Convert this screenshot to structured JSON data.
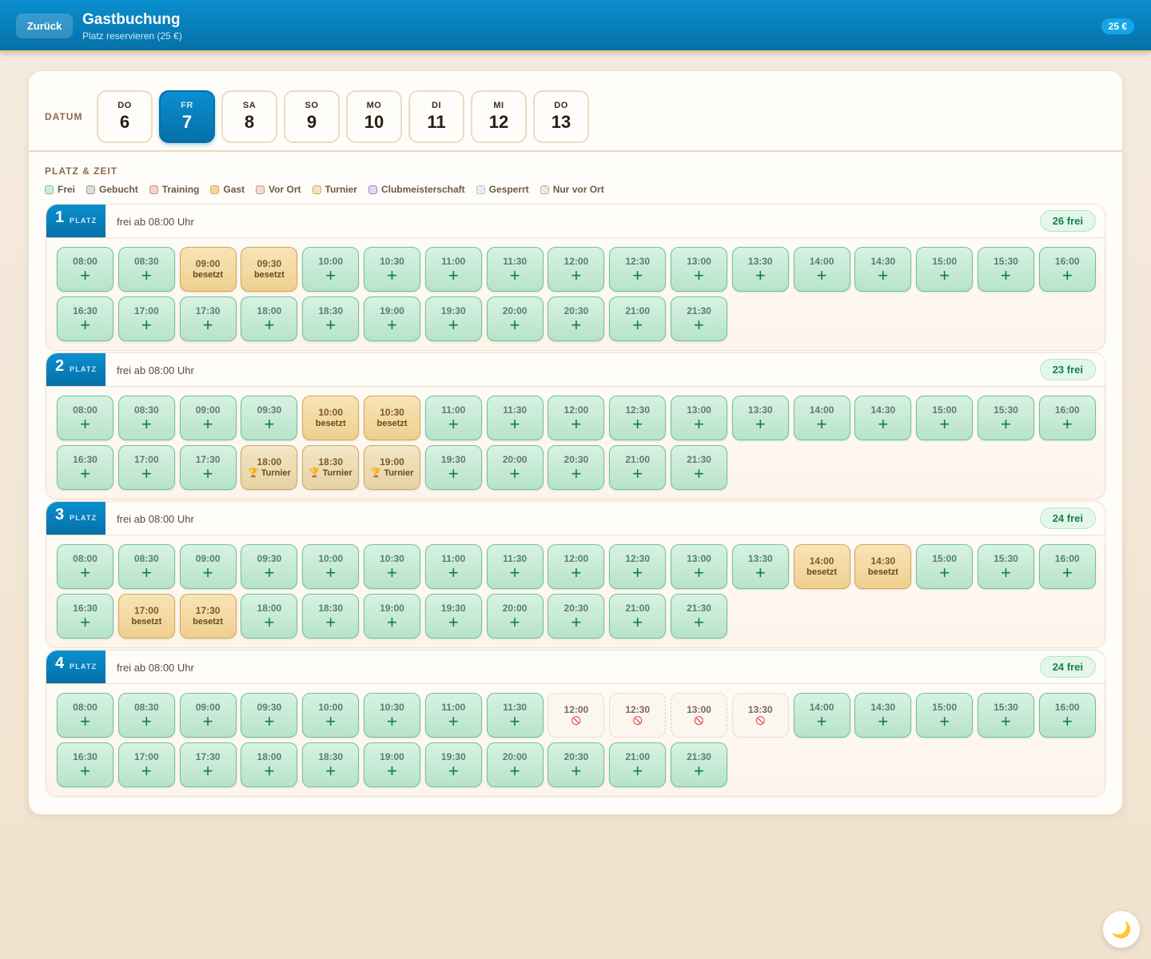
{
  "header": {
    "back_label": "Zurück",
    "title": "Gastbuchung",
    "subtitle": "Platz reservieren (25 €)",
    "price": "25 €"
  },
  "date": {
    "label": "DATUM",
    "days": [
      {
        "dow": "DO",
        "day": "6"
      },
      {
        "dow": "FR",
        "day": "7",
        "selected": true
      },
      {
        "dow": "SA",
        "day": "8"
      },
      {
        "dow": "SO",
        "day": "9"
      },
      {
        "dow": "MO",
        "day": "10"
      },
      {
        "dow": "DI",
        "day": "11"
      },
      {
        "dow": "MI",
        "day": "12"
      },
      {
        "dow": "DO",
        "day": "13"
      }
    ]
  },
  "section_title": "PLATZ & ZEIT",
  "legend": [
    "Frei",
    "Gebucht",
    "Training",
    "Gast",
    "Vor Ort",
    "Turnier",
    "Clubmeisterschaft",
    "Gesperrt",
    "Nur vor Ort"
  ],
  "courts": [
    {
      "num": "1",
      "label": "PLATZ",
      "info": "frei ab 08:00 Uhr",
      "free": "26 frei",
      "slots": [
        {
          "t": "08:00",
          "k": "free"
        },
        {
          "t": "08:30",
          "k": "free"
        },
        {
          "t": "09:00",
          "k": "busy",
          "s": "besetzt"
        },
        {
          "t": "09:30",
          "k": "busy",
          "s": "besetzt"
        },
        {
          "t": "10:00",
          "k": "free"
        },
        {
          "t": "10:30",
          "k": "free"
        },
        {
          "t": "11:00",
          "k": "free"
        },
        {
          "t": "11:30",
          "k": "free"
        },
        {
          "t": "12:00",
          "k": "free"
        },
        {
          "t": "12:30",
          "k": "free"
        },
        {
          "t": "13:00",
          "k": "free"
        },
        {
          "t": "13:30",
          "k": "free"
        },
        {
          "t": "14:00",
          "k": "free"
        },
        {
          "t": "14:30",
          "k": "free"
        },
        {
          "t": "15:00",
          "k": "free"
        },
        {
          "t": "15:30",
          "k": "free"
        },
        {
          "t": "16:00",
          "k": "free"
        },
        {
          "t": "16:30",
          "k": "free"
        },
        {
          "t": "17:00",
          "k": "free"
        },
        {
          "t": "17:30",
          "k": "free"
        },
        {
          "t": "18:00",
          "k": "free"
        },
        {
          "t": "18:30",
          "k": "free"
        },
        {
          "t": "19:00",
          "k": "free"
        },
        {
          "t": "19:30",
          "k": "free"
        },
        {
          "t": "20:00",
          "k": "free"
        },
        {
          "t": "20:30",
          "k": "free"
        },
        {
          "t": "21:00",
          "k": "free"
        },
        {
          "t": "21:30",
          "k": "free"
        }
      ]
    },
    {
      "num": "2",
      "label": "PLATZ",
      "info": "frei ab 08:00 Uhr",
      "free": "23 frei",
      "slots": [
        {
          "t": "08:00",
          "k": "free"
        },
        {
          "t": "08:30",
          "k": "free"
        },
        {
          "t": "09:00",
          "k": "free"
        },
        {
          "t": "09:30",
          "k": "free"
        },
        {
          "t": "10:00",
          "k": "busy",
          "s": "besetzt"
        },
        {
          "t": "10:30",
          "k": "busy",
          "s": "besetzt"
        },
        {
          "t": "11:00",
          "k": "free"
        },
        {
          "t": "11:30",
          "k": "free"
        },
        {
          "t": "12:00",
          "k": "free"
        },
        {
          "t": "12:30",
          "k": "free"
        },
        {
          "t": "13:00",
          "k": "free"
        },
        {
          "t": "13:30",
          "k": "free"
        },
        {
          "t": "14:00",
          "k": "free"
        },
        {
          "t": "14:30",
          "k": "free"
        },
        {
          "t": "15:00",
          "k": "free"
        },
        {
          "t": "15:30",
          "k": "free"
        },
        {
          "t": "16:00",
          "k": "free"
        },
        {
          "t": "16:30",
          "k": "free"
        },
        {
          "t": "17:00",
          "k": "free"
        },
        {
          "t": "17:30",
          "k": "free"
        },
        {
          "t": "18:00",
          "k": "turnier",
          "s": "🏆 Turnier"
        },
        {
          "t": "18:30",
          "k": "turnier",
          "s": "🏆 Turnier"
        },
        {
          "t": "19:00",
          "k": "turnier",
          "s": "🏆 Turnier"
        },
        {
          "t": "19:30",
          "k": "free"
        },
        {
          "t": "20:00",
          "k": "free"
        },
        {
          "t": "20:30",
          "k": "free"
        },
        {
          "t": "21:00",
          "k": "free"
        },
        {
          "t": "21:30",
          "k": "free"
        }
      ]
    },
    {
      "num": "3",
      "label": "PLATZ",
      "info": "frei ab 08:00 Uhr",
      "free": "24 frei",
      "slots": [
        {
          "t": "08:00",
          "k": "free"
        },
        {
          "t": "08:30",
          "k": "free"
        },
        {
          "t": "09:00",
          "k": "free"
        },
        {
          "t": "09:30",
          "k": "free"
        },
        {
          "t": "10:00",
          "k": "free"
        },
        {
          "t": "10:30",
          "k": "free"
        },
        {
          "t": "11:00",
          "k": "free"
        },
        {
          "t": "11:30",
          "k": "free"
        },
        {
          "t": "12:00",
          "k": "free"
        },
        {
          "t": "12:30",
          "k": "free"
        },
        {
          "t": "13:00",
          "k": "free"
        },
        {
          "t": "13:30",
          "k": "free"
        },
        {
          "t": "14:00",
          "k": "busy",
          "s": "besetzt"
        },
        {
          "t": "14:30",
          "k": "busy",
          "s": "besetzt"
        },
        {
          "t": "15:00",
          "k": "free"
        },
        {
          "t": "15:30",
          "k": "free"
        },
        {
          "t": "16:00",
          "k": "free"
        },
        {
          "t": "16:30",
          "k": "free"
        },
        {
          "t": "17:00",
          "k": "busy",
          "s": "besetzt"
        },
        {
          "t": "17:30",
          "k": "busy",
          "s": "besetzt"
        },
        {
          "t": "18:00",
          "k": "free"
        },
        {
          "t": "18:30",
          "k": "free"
        },
        {
          "t": "19:00",
          "k": "free"
        },
        {
          "t": "19:30",
          "k": "free"
        },
        {
          "t": "20:00",
          "k": "free"
        },
        {
          "t": "20:30",
          "k": "free"
        },
        {
          "t": "21:00",
          "k": "free"
        },
        {
          "t": "21:30",
          "k": "free"
        }
      ]
    },
    {
      "num": "4",
      "label": "PLATZ",
      "info": "frei ab 08:00 Uhr",
      "free": "24 frei",
      "slots": [
        {
          "t": "08:00",
          "k": "free"
        },
        {
          "t": "08:30",
          "k": "free"
        },
        {
          "t": "09:00",
          "k": "free"
        },
        {
          "t": "09:30",
          "k": "free"
        },
        {
          "t": "10:00",
          "k": "free"
        },
        {
          "t": "10:30",
          "k": "free"
        },
        {
          "t": "11:00",
          "k": "free"
        },
        {
          "t": "11:30",
          "k": "free"
        },
        {
          "t": "12:00",
          "k": "blocked",
          "s": "⃠"
        },
        {
          "t": "12:30",
          "k": "blocked",
          "s": "⃠"
        },
        {
          "t": "13:00",
          "k": "blocked",
          "s": "⃠"
        },
        {
          "t": "13:30",
          "k": "blocked",
          "s": "⃠"
        },
        {
          "t": "14:00",
          "k": "free"
        },
        {
          "t": "14:30",
          "k": "free"
        },
        {
          "t": "15:00",
          "k": "free"
        },
        {
          "t": "15:30",
          "k": "free"
        },
        {
          "t": "16:00",
          "k": "free"
        },
        {
          "t": "16:30",
          "k": "free"
        },
        {
          "t": "17:00",
          "k": "free"
        },
        {
          "t": "17:30",
          "k": "free"
        },
        {
          "t": "18:00",
          "k": "free"
        },
        {
          "t": "18:30",
          "k": "free"
        },
        {
          "t": "19:00",
          "k": "free"
        },
        {
          "t": "19:30",
          "k": "free"
        },
        {
          "t": "20:00",
          "k": "free"
        },
        {
          "t": "20:30",
          "k": "free"
        },
        {
          "t": "21:00",
          "k": "free"
        },
        {
          "t": "21:30",
          "k": "free"
        }
      ]
    }
  ],
  "theme_toggle_icon": "moon-icon"
}
